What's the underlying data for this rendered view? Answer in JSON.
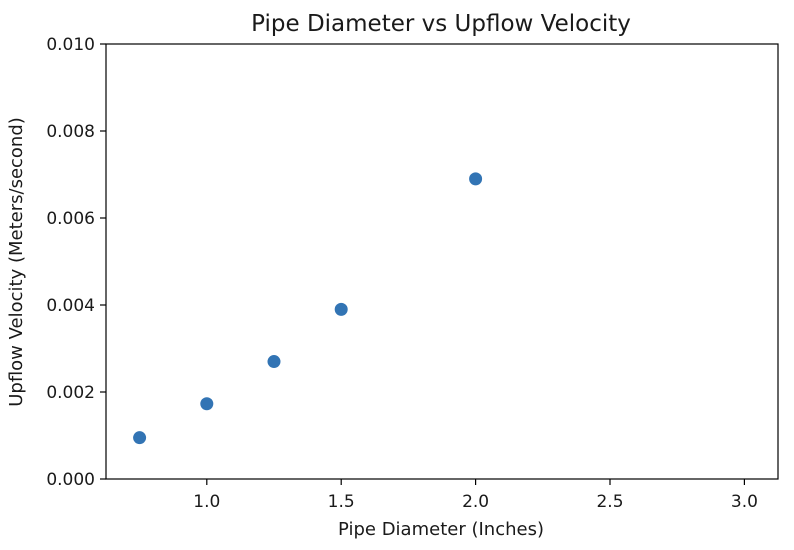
{
  "chart_data": {
    "type": "scatter",
    "title": "Pipe Diameter vs Upflow Velocity",
    "xlabel": "Pipe Diameter (Inches)",
    "ylabel": "Upflow Velocity (Meters/second)",
    "xlim": [
      0.625,
      3.125
    ],
    "ylim": [
      0,
      0.01
    ],
    "xticks": [
      1.0,
      1.5,
      2.0,
      2.5,
      3.0
    ],
    "xtick_labels": [
      "1.0",
      "1.5",
      "2.0",
      "2.5",
      "3.0"
    ],
    "yticks": [
      0.0,
      0.002,
      0.004,
      0.006,
      0.008,
      0.01
    ],
    "ytick_labels": [
      "0.000",
      "0.002",
      "0.004",
      "0.006",
      "0.008",
      "0.010"
    ],
    "grid": false,
    "point_color": "#3274b4",
    "series": [
      {
        "x": [
          0.75,
          1.0,
          1.25,
          1.5,
          2.0
        ],
        "y": [
          0.00095,
          0.00173,
          0.0027,
          0.0039,
          0.0069
        ]
      }
    ]
  }
}
